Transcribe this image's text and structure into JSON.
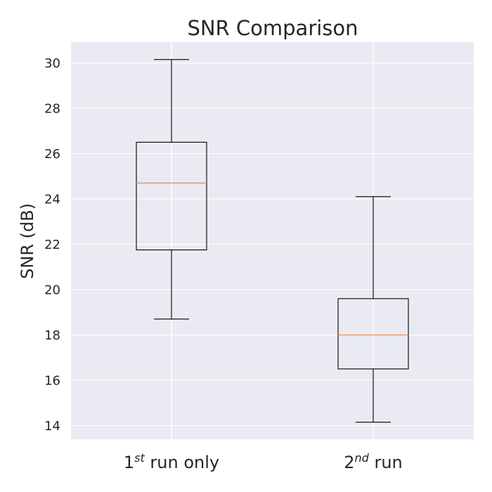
{
  "chart_data": {
    "type": "box",
    "title": "SNR Comparison",
    "xlabel": "",
    "ylabel": "SNR (dB)",
    "ylim": [
      13.4,
      30.9
    ],
    "yticks": [
      14,
      16,
      18,
      20,
      22,
      24,
      26,
      28,
      30
    ],
    "grid": true,
    "categories": [
      {
        "main": "1",
        "sup": "st",
        "rest": " run only"
      },
      {
        "main": "2",
        "sup": "nd",
        "rest": " run"
      }
    ],
    "boxes": [
      {
        "whisker_low": 18.7,
        "q1": 21.75,
        "median": 24.7,
        "q3": 26.5,
        "whisker_high": 30.15
      },
      {
        "whisker_low": 14.15,
        "q1": 16.5,
        "median": 18.0,
        "q3": 19.6,
        "whisker_high": 24.1
      }
    ],
    "colors": {
      "axes_background": "#eaeaf2",
      "grid": "#ffffff",
      "box": "#000000",
      "median": "#e0925c",
      "text": "#262626"
    }
  }
}
